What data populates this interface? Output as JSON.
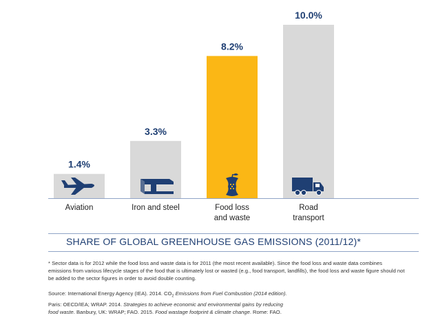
{
  "chart_data": {
    "type": "bar",
    "categories": [
      "Aviation",
      "Iron and steel",
      "Food loss\nand waste",
      "Road\ntransport"
    ],
    "values": [
      1.4,
      3.3,
      8.2,
      10.0
    ],
    "value_labels": [
      "1.4%",
      "3.3%",
      "8.2%",
      "10.0%"
    ],
    "highlight_index": 2,
    "title": "SHARE OF GLOBAL GREENHOUSE GAS EMISSIONS (2011/12)*",
    "icons": [
      "airplane-icon",
      "steel-beam-icon",
      "apple-core-icon",
      "truck-icon"
    ],
    "ylim": [
      0,
      10
    ],
    "grid": false,
    "legend": "none"
  },
  "colors": {
    "bar": "#d9d9d9",
    "highlight": "#fbb715",
    "navy": "#1f3f73",
    "divider": "#8fa3c6"
  },
  "footnote": "* Sector data is for 2012 while the food loss and waste data is for 2011 (the most recent available). Since the food loss and waste data combines emissions from various lifecycle stages of the food that is ultimately lost or wasted (e.g., food transport, landfills), the food loss and waste figure should not be added to the sector figures in order to avoid double counting.",
  "source": {
    "line1_a": "Source:  International Energy Agency (IEA). 2014. CO",
    "co2_sub": "2",
    "line1_b": " Emissions from Fuel Combustion (2014 edition).",
    "line2_a": "Paris: OECD/IEA; WRAP. 2014. ",
    "line2_b": "Strategies to achieve economic and environmental gains by reducing",
    "line3_a": "food waste",
    "line3_b": ". Banbury, UK: WRAP; FAO. 2015. ",
    "line3_c": "Food wastage footprint & climate change",
    "line3_d": ". Rome: FAO."
  }
}
